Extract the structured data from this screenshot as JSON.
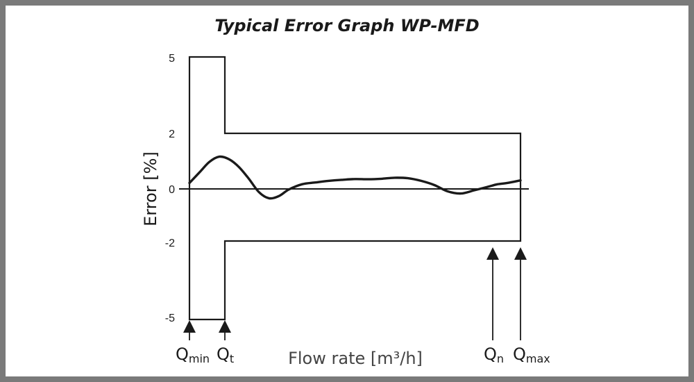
{
  "chart_data": {
    "type": "line",
    "title": "Typical Error Graph WP-MFD",
    "xlabel": "Flow rate [m³/h]",
    "ylabel": "Error [%]",
    "ylim": [
      -5,
      5
    ],
    "yticks": [
      "5",
      "2",
      "0",
      "-2",
      "-5"
    ],
    "ytick_values": [
      5,
      2,
      0,
      -2,
      -5
    ],
    "limits": {
      "low_flow_range": {
        "from": "Q_min",
        "to": "Q_t",
        "upper": 5,
        "lower": -5
      },
      "high_flow_range": {
        "from": "Q_t",
        "to": "Q_max",
        "upper": 2,
        "lower": -2
      }
    },
    "flow_points": [
      {
        "name": "Qmin",
        "main": "Q",
        "sub": "min"
      },
      {
        "name": "Qt",
        "main": "Q",
        "sub": "t"
      },
      {
        "name": "Qn",
        "main": "Q",
        "sub": "n"
      },
      {
        "name": "Qmax",
        "main": "Q",
        "sub": "max"
      }
    ],
    "error_curve": {
      "x": [
        0,
        0.03,
        0.06,
        0.09,
        0.12,
        0.15,
        0.18,
        0.21,
        0.24,
        0.27,
        0.3,
        0.34,
        0.38,
        0.42,
        0.46,
        0.5,
        0.54,
        0.58,
        0.62,
        0.66,
        0.7,
        0.74,
        0.78,
        0.82,
        0.86,
        0.9,
        0.93,
        0.96,
        1.0
      ],
      "y": [
        0.2,
        0.6,
        1.0,
        1.2,
        1.1,
        0.8,
        0.35,
        -0.15,
        -0.38,
        -0.3,
        -0.05,
        0.15,
        0.22,
        0.28,
        0.32,
        0.35,
        0.34,
        0.36,
        0.4,
        0.38,
        0.28,
        0.12,
        -0.12,
        -0.2,
        -0.08,
        0.05,
        0.15,
        0.2,
        0.3
      ]
    },
    "grid": false,
    "colors": {
      "line": "#1a1a1a",
      "frame": "#7a7a7a"
    }
  }
}
